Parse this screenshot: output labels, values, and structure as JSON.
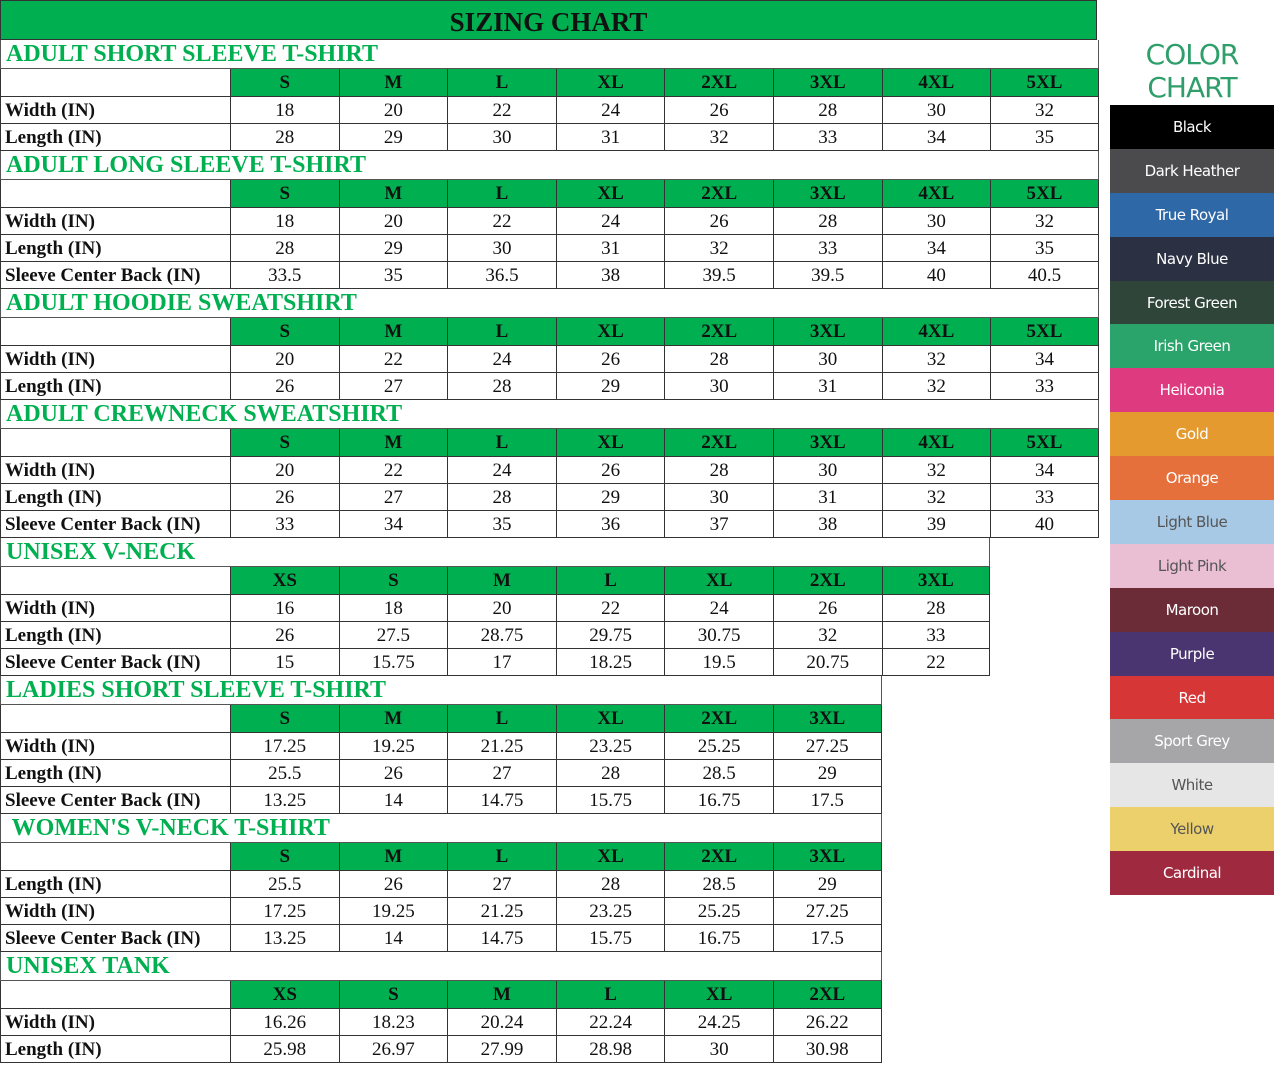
{
  "title": "SIZING CHART",
  "sections": [
    {
      "title": "ADULT SHORT SLEEVE T-SHIRT",
      "sizes": [
        "S",
        "M",
        "L",
        "XL",
        "2XL",
        "3XL",
        "4XL",
        "5XL"
      ],
      "rows": [
        {
          "label": "Width (IN)",
          "values": [
            "18",
            "20",
            "22",
            "24",
            "26",
            "28",
            "30",
            "32"
          ]
        },
        {
          "label": "Length (IN)",
          "values": [
            "28",
            "29",
            "30",
            "31",
            "32",
            "33",
            "34",
            "35"
          ]
        }
      ]
    },
    {
      "title": "ADULT LONG SLEEVE T-SHIRT",
      "sizes": [
        "S",
        "M",
        "L",
        "XL",
        "2XL",
        "3XL",
        "4XL",
        "5XL"
      ],
      "rows": [
        {
          "label": "Width (IN)",
          "values": [
            "18",
            "20",
            "22",
            "24",
            "26",
            "28",
            "30",
            "32"
          ]
        },
        {
          "label": "Length (IN)",
          "values": [
            "28",
            "29",
            "30",
            "31",
            "32",
            "33",
            "34",
            "35"
          ]
        },
        {
          "label": "Sleeve Center Back (IN)",
          "values": [
            "33.5",
            "35",
            "36.5",
            "38",
            "39.5",
            "39.5",
            "40",
            "40.5"
          ]
        }
      ]
    },
    {
      "title": "ADULT HOODIE SWEATSHIRT",
      "sizes": [
        "S",
        "M",
        "L",
        "XL",
        "2XL",
        "3XL",
        "4XL",
        "5XL"
      ],
      "rows": [
        {
          "label": "Width (IN)",
          "values": [
            "20",
            "22",
            "24",
            "26",
            "28",
            "30",
            "32",
            "34"
          ]
        },
        {
          "label": "Length (IN)",
          "values": [
            "26",
            "27",
            "28",
            "29",
            "30",
            "31",
            "32",
            "33"
          ]
        }
      ]
    },
    {
      "title": "ADULT CREWNECK SWEATSHIRT",
      "sizes": [
        "S",
        "M",
        "L",
        "XL",
        "2XL",
        "3XL",
        "4XL",
        "5XL"
      ],
      "rows": [
        {
          "label": "Width (IN)",
          "values": [
            "20",
            "22",
            "24",
            "26",
            "28",
            "30",
            "32",
            "34"
          ]
        },
        {
          "label": "Length (IN)",
          "values": [
            "26",
            "27",
            "28",
            "29",
            "30",
            "31",
            "32",
            "33"
          ]
        },
        {
          "label": "Sleeve Center Back (IN)",
          "values": [
            "33",
            "34",
            "35",
            "36",
            "37",
            "38",
            "39",
            "40"
          ]
        }
      ]
    },
    {
      "title": "UNISEX V-NECK",
      "sizes": [
        "XS",
        "S",
        "M",
        "L",
        "XL",
        "2XL",
        "3XL"
      ],
      "rows": [
        {
          "label": "Width (IN)",
          "values": [
            "16",
            "18",
            "20",
            "22",
            "24",
            "26",
            "28"
          ]
        },
        {
          "label": "Length (IN)",
          "values": [
            "26",
            "27.5",
            "28.75",
            "29.75",
            "30.75",
            "32",
            "33"
          ]
        },
        {
          "label": "Sleeve Center Back (IN)",
          "values": [
            "15",
            "15.75",
            "17",
            "18.25",
            "19.5",
            "20.75",
            "22"
          ]
        }
      ]
    },
    {
      "title": "LADIES SHORT SLEEVE T-SHIRT",
      "sizes": [
        "S",
        "M",
        "L",
        "XL",
        "2XL",
        "3XL"
      ],
      "rows": [
        {
          "label": "Width (IN)",
          "values": [
            "17.25",
            "19.25",
            "21.25",
            "23.25",
            "25.25",
            "27.25"
          ]
        },
        {
          "label": "Length (IN)",
          "values": [
            "25.5",
            "26",
            "27",
            "28",
            "28.5",
            "29"
          ]
        },
        {
          "label": "Sleeve Center Back (IN)",
          "values": [
            "13.25",
            "14",
            "14.75",
            "15.75",
            "16.75",
            "17.5"
          ]
        }
      ]
    },
    {
      "title": " WOMEN'S V-NECK T-SHIRT",
      "sizes": [
        "S",
        "M",
        "L",
        "XL",
        "2XL",
        "3XL"
      ],
      "rows": [
        {
          "label": "Length (IN)",
          "values": [
            "25.5",
            "26",
            "27",
            "28",
            "28.5",
            "29"
          ]
        },
        {
          "label": "Width (IN)",
          "values": [
            "17.25",
            "19.25",
            "21.25",
            "23.25",
            "25.25",
            "27.25"
          ]
        },
        {
          "label": "Sleeve Center Back (IN)",
          "values": [
            "13.25",
            "14",
            "14.75",
            "15.75",
            "16.75",
            "17.5"
          ]
        }
      ]
    },
    {
      "title": "UNISEX TANK",
      "sizes": [
        "XS",
        "S",
        "M",
        "L",
        "XL",
        "2XL"
      ],
      "rows": [
        {
          "label": "Width (IN)",
          "values": [
            "16.26",
            "18.23",
            "20.24",
            "22.24",
            "24.25",
            "26.22"
          ]
        },
        {
          "label": "Length (IN)",
          "values": [
            "25.98",
            "26.97",
            "27.99",
            "28.98",
            "30",
            "30.98"
          ]
        }
      ]
    }
  ],
  "color_chart": {
    "title": "COLOR CHART",
    "colors": [
      {
        "name": "Black",
        "hex": "#000000",
        "text": "#ffffff"
      },
      {
        "name": "Dark Heather",
        "hex": "#4b4b4d",
        "text": "#ffffff"
      },
      {
        "name": "True Royal",
        "hex": "#2f68a6",
        "text": "#ffffff"
      },
      {
        "name": "Navy Blue",
        "hex": "#2b3143",
        "text": "#ffffff"
      },
      {
        "name": "Forest Green",
        "hex": "#30453a",
        "text": "#ffffff"
      },
      {
        "name": "Irish Green",
        "hex": "#2ba46c",
        "text": "#ffffff"
      },
      {
        "name": "Heliconia",
        "hex": "#de3a80",
        "text": "#ffffff"
      },
      {
        "name": "Gold",
        "hex": "#e59a30",
        "text": "#ffffff"
      },
      {
        "name": "Orange",
        "hex": "#e6703c",
        "text": "#ffffff"
      },
      {
        "name": "Light Blue",
        "hex": "#a8c9e5",
        "text": "#555555"
      },
      {
        "name": "Light Pink",
        "hex": "#eabfd4",
        "text": "#555555"
      },
      {
        "name": "Maroon",
        "hex": "#6b2b37",
        "text": "#ffffff"
      },
      {
        "name": "Purple",
        "hex": "#4b3570",
        "text": "#ffffff"
      },
      {
        "name": "Red",
        "hex": "#d63636",
        "text": "#ffffff"
      },
      {
        "name": "Sport Grey",
        "hex": "#a6a6a8",
        "text": "#ffffff"
      },
      {
        "name": "White",
        "hex": "#e6e6e6",
        "text": "#555555"
      },
      {
        "name": "Yellow",
        "hex": "#ebd06c",
        "text": "#555555"
      },
      {
        "name": "Cardinal",
        "hex": "#9f2a40",
        "text": "#ffffff"
      }
    ]
  }
}
